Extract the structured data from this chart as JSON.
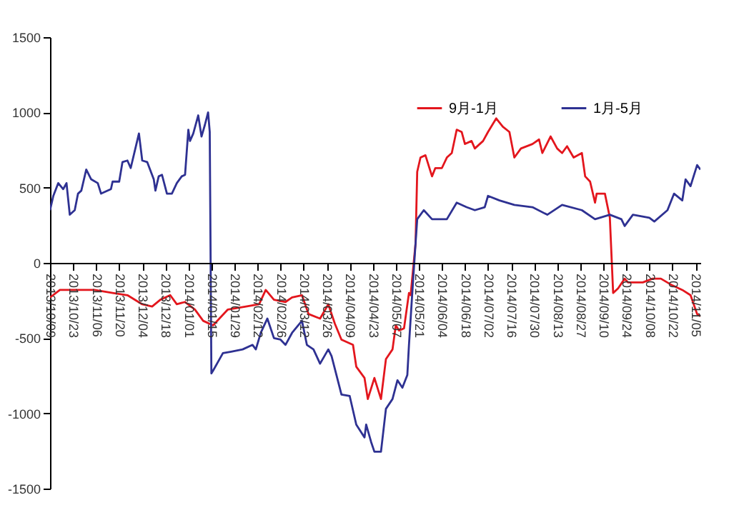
{
  "chart_data": {
    "type": "line",
    "legend": "top right",
    "grid": false,
    "xlim": [
      "2013-10-09",
      "2014-11-08"
    ],
    "xticks": [
      {
        "value": "2013-10-09",
        "label": "2013/10/09"
      },
      {
        "value": "2013-10-23",
        "label": "2013/10/23"
      },
      {
        "value": "2013-11-06",
        "label": "2013/11/06"
      },
      {
        "value": "2013-11-20",
        "label": "2013/11/20"
      },
      {
        "value": "2013-12-04",
        "label": "2013/12/04"
      },
      {
        "value": "2013-12-18",
        "label": "2013/12/18"
      },
      {
        "value": "2014-01-01",
        "label": "2014/01/01"
      },
      {
        "value": "2014-01-15",
        "label": "2014/01/15"
      },
      {
        "value": "2014-01-29",
        "label": "2014/01/29"
      },
      {
        "value": "2014-02-12",
        "label": "2014/02/12"
      },
      {
        "value": "2014-02-26",
        "label": "2014/02/26"
      },
      {
        "value": "2014-03-12",
        "label": "2014/03/12"
      },
      {
        "value": "2014-03-26",
        "label": "2014/03/26"
      },
      {
        "value": "2014-04-09",
        "label": "2014/04/09"
      },
      {
        "value": "2014-04-23",
        "label": "2014/04/23"
      },
      {
        "value": "2014-05-07",
        "label": "2014/05/07"
      },
      {
        "value": "2014-05-21",
        "label": "2014/05/21"
      },
      {
        "value": "2014-06-04",
        "label": "2014/06/04"
      },
      {
        "value": "2014-06-18",
        "label": "2014/06/18"
      },
      {
        "value": "2014-07-02",
        "label": "2014/07/02"
      },
      {
        "value": "2014-07-16",
        "label": "2014/07/16"
      },
      {
        "value": "2014-07-30",
        "label": "2014/07/30"
      },
      {
        "value": "2014-08-13",
        "label": "2014/08/13"
      },
      {
        "value": "2014-08-27",
        "label": "2014/08/27"
      },
      {
        "value": "2014-09-10",
        "label": "2014/09/10"
      },
      {
        "value": "2014-09-24",
        "label": "2014/09/24"
      },
      {
        "value": "2014-10-08",
        "label": "2014/10/08"
      },
      {
        "value": "2014-10-22",
        "label": "2014/10/22"
      },
      {
        "value": "2014-11-05",
        "label": "2014/11/05"
      }
    ],
    "ylim": [
      -1500,
      1500
    ],
    "yticks": [
      -1500,
      -1000,
      -500,
      0,
      500,
      1000,
      1500
    ],
    "series": [
      {
        "name": "9月-1月",
        "color": "#e3161d",
        "x": [
          "2013-10-09",
          "2013-10-15",
          "2013-10-27",
          "2013-11-05",
          "2013-11-16",
          "2013-11-25",
          "2013-12-04",
          "2013-12-10",
          "2013-12-15",
          "2013-12-21",
          "2013-12-25",
          "2013-12-30",
          "2014-01-05",
          "2014-01-10",
          "2014-01-16",
          "2014-01-25",
          "2014-02-05",
          "2014-02-13",
          "2014-02-17",
          "2014-02-22",
          "2014-03-01",
          "2014-03-05",
          "2014-03-11",
          "2014-03-15",
          "2014-03-22",
          "2014-03-27",
          "2014-03-31",
          "2014-04-04",
          "2014-04-11",
          "2014-04-13",
          "2014-04-18",
          "2014-04-20",
          "2014-04-24",
          "2014-04-28",
          "2014-05-01",
          "2014-05-05",
          "2014-05-07",
          "2014-05-09",
          "2014-05-12",
          "2014-05-15",
          "2014-05-16",
          "2014-05-19",
          "2014-05-20",
          "2014-05-22",
          "2014-05-25",
          "2014-05-29",
          "2014-05-31",
          "2014-06-04",
          "2014-06-07",
          "2014-06-10",
          "2014-06-13",
          "2014-06-16",
          "2014-06-18",
          "2014-06-22",
          "2014-06-24",
          "2014-06-29",
          "2014-07-02",
          "2014-07-07",
          "2014-07-11",
          "2014-07-15",
          "2014-07-18",
          "2014-07-22",
          "2014-07-29",
          "2014-08-02",
          "2014-08-04",
          "2014-08-09",
          "2014-08-13",
          "2014-08-16",
          "2014-08-19",
          "2014-08-23",
          "2014-08-28",
          "2014-08-30",
          "2014-09-02",
          "2014-09-05",
          "2014-09-06",
          "2014-09-11",
          "2014-09-14",
          "2014-09-16",
          "2014-09-19",
          "2014-09-23",
          "2014-09-25",
          "2014-10-04",
          "2014-10-10",
          "2014-10-15",
          "2014-10-22",
          "2014-10-28",
          "2014-11-02",
          "2014-11-06",
          "2014-11-08"
        ],
        "values": [
          -230,
          -180,
          -180,
          -180,
          -200,
          -215,
          -275,
          -290,
          -245,
          -215,
          -275,
          -260,
          -310,
          -385,
          -415,
          -310,
          -290,
          -275,
          -180,
          -245,
          -260,
          -230,
          -215,
          -340,
          -370,
          -275,
          -405,
          -510,
          -545,
          -690,
          -765,
          -905,
          -765,
          -905,
          -640,
          -575,
          -415,
          -450,
          -435,
          -200,
          -215,
          130,
          605,
          700,
          715,
          575,
          630,
          630,
          700,
          730,
          885,
          870,
          790,
          810,
          760,
          810,
          870,
          960,
          905,
          870,
          700,
          760,
          790,
          820,
          730,
          840,
          760,
          730,
          775,
          700,
          730,
          575,
          540,
          400,
          460,
          460,
          300,
          -200,
          -170,
          -105,
          -130,
          -130,
          -105,
          -105,
          -150,
          -180,
          -215,
          -340,
          -355
        ]
      },
      {
        "name": "1月-5月",
        "color": "#2e3192",
        "x": [
          "2013-10-09",
          "2013-10-11",
          "2013-10-14",
          "2013-10-17",
          "2013-10-19",
          "2013-10-21",
          "2013-10-24",
          "2013-10-26",
          "2013-10-28",
          "2013-10-31",
          "2013-11-03",
          "2013-11-07",
          "2013-11-09",
          "2013-11-15",
          "2013-11-16",
          "2013-11-20",
          "2013-11-22",
          "2013-11-25",
          "2013-11-27",
          "2013-12-02",
          "2013-12-04",
          "2013-12-07",
          "2013-12-11",
          "2013-12-12",
          "2013-12-14",
          "2013-12-16",
          "2013-12-19",
          "2013-12-22",
          "2013-12-25",
          "2013-12-28",
          "2013-12-30",
          "2014-01-01",
          "2014-01-02",
          "2014-01-04",
          "2014-01-07",
          "2014-01-09",
          "2014-01-11",
          "2014-01-13",
          "2014-01-14",
          "2014-01-15",
          "2014-01-16",
          "2014-01-22",
          "2014-01-27",
          "2014-02-03",
          "2014-02-09",
          "2014-02-11",
          "2014-02-14",
          "2014-02-18",
          "2014-02-22",
          "2014-02-26",
          "2014-03-01",
          "2014-03-05",
          "2014-03-11",
          "2014-03-14",
          "2014-03-18",
          "2014-03-22",
          "2014-03-27",
          "2014-03-29",
          "2014-04-04",
          "2014-04-09",
          "2014-04-13",
          "2014-04-18",
          "2014-04-19",
          "2014-04-22",
          "2014-04-24",
          "2014-04-28",
          "2014-05-01",
          "2014-05-05",
          "2014-05-08",
          "2014-05-11",
          "2014-05-14",
          "2014-05-15",
          "2014-05-17",
          "2014-05-19",
          "2014-05-20",
          "2014-05-24",
          "2014-05-29",
          "2014-06-07",
          "2014-06-13",
          "2014-06-19",
          "2014-06-24",
          "2014-06-30",
          "2014-07-02",
          "2014-07-09",
          "2014-07-18",
          "2014-07-29",
          "2014-08-07",
          "2014-08-16",
          "2014-08-28",
          "2014-09-05",
          "2014-09-14",
          "2014-09-21",
          "2014-09-23",
          "2014-09-28",
          "2014-10-08",
          "2014-10-11",
          "2014-10-19",
          "2014-10-23",
          "2014-10-28",
          "2014-10-30",
          "2014-11-02",
          "2014-11-06",
          "2014-11-08"
        ],
        "values": [
          350,
          445,
          530,
          490,
          530,
          320,
          350,
          460,
          480,
          620,
          555,
          530,
          460,
          490,
          540,
          540,
          670,
          680,
          630,
          860,
          680,
          670,
          555,
          480,
          575,
          585,
          460,
          460,
          530,
          575,
          585,
          885,
          810,
          860,
          980,
          840,
          915,
          1000,
          870,
          -735,
          -717,
          -600,
          -590,
          -575,
          -545,
          -575,
          -465,
          -370,
          -500,
          -510,
          -545,
          -465,
          -385,
          -545,
          -575,
          -670,
          -575,
          -620,
          -875,
          -885,
          -1075,
          -1160,
          -1075,
          -1190,
          -1255,
          -1255,
          -970,
          -905,
          -780,
          -830,
          -745,
          -545,
          -200,
          130,
          290,
          350,
          290,
          290,
          400,
          370,
          350,
          370,
          445,
          415,
          385,
          370,
          320,
          385,
          350,
          290,
          320,
          290,
          245,
          320,
          300,
          275,
          350,
          460,
          415,
          555,
          510,
          650,
          620
        ]
      }
    ]
  }
}
